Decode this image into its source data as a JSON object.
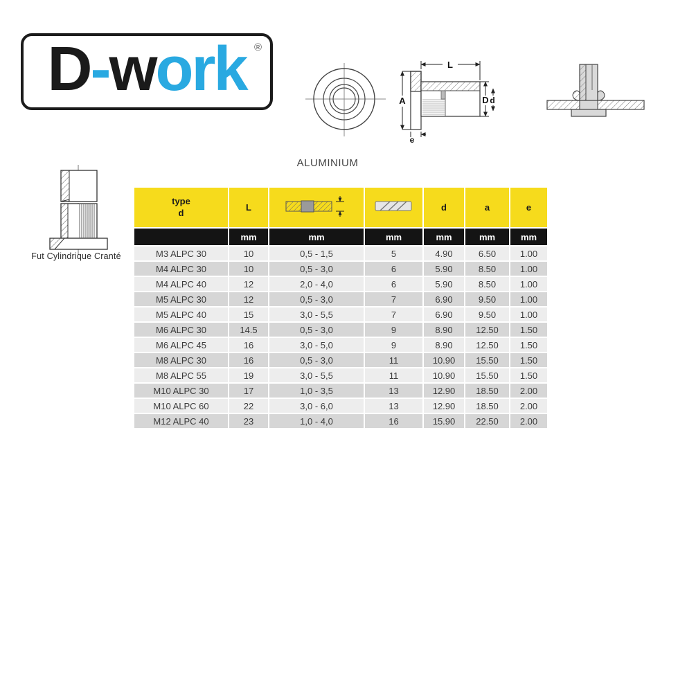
{
  "title": "ALUMINIUM",
  "logo": {
    "parts": [
      {
        "text": "D",
        "color": "black"
      },
      {
        "text": "-",
        "color": "blue"
      },
      {
        "text": "w",
        "color": "black"
      },
      {
        "text": "ork",
        "color": "blue"
      }
    ],
    "registered": "®",
    "colors": {
      "blue": "#29A9E1",
      "black": "#1A1A1A"
    }
  },
  "left_figure": {
    "caption": "Fut Cylindrique Cranté"
  },
  "side_view": {
    "labels": {
      "L": "L",
      "A": "A",
      "D": "D",
      "d": "d",
      "e": "e"
    }
  },
  "table": {
    "columns": [
      {
        "label_line1": "type",
        "label_line2": "d",
        "unit": ""
      },
      {
        "label": "L",
        "unit": "mm"
      },
      {
        "icon": "grip-range-icon",
        "unit": "mm"
      },
      {
        "icon": "drill-diameter-icon",
        "unit": "mm"
      },
      {
        "label": "d",
        "unit": "mm"
      },
      {
        "label": "a",
        "unit": "mm"
      },
      {
        "label": "e",
        "unit": "mm"
      }
    ],
    "rows": [
      [
        "M3 ALPC 30",
        "10",
        "0,5 - 1,5",
        "5",
        "4.90",
        "6.50",
        "1.00"
      ],
      [
        "M4 ALPC 30",
        "10",
        "0,5 - 3,0",
        "6",
        "5.90",
        "8.50",
        "1.00"
      ],
      [
        "M4 ALPC 40",
        "12",
        "2,0 - 4,0",
        "6",
        "5.90",
        "8.50",
        "1.00"
      ],
      [
        "M5 ALPC 30",
        "12",
        "0,5 - 3,0",
        "7",
        "6.90",
        "9.50",
        "1.00"
      ],
      [
        "M5 ALPC 40",
        "15",
        "3,0 - 5,5",
        "7",
        "6.90",
        "9.50",
        "1.00"
      ],
      [
        "M6 ALPC 30",
        "14.5",
        "0,5 - 3,0",
        "9",
        "8.90",
        "12.50",
        "1.50"
      ],
      [
        "M6 ALPC 45",
        "16",
        "3,0 - 5,0",
        "9",
        "8.90",
        "12.50",
        "1.50"
      ],
      [
        "M8 ALPC 30",
        "16",
        "0,5 - 3,0",
        "11",
        "10.90",
        "15.50",
        "1.50"
      ],
      [
        "M8 ALPC 55",
        "19",
        "3,0 - 5,5",
        "11",
        "10.90",
        "15.50",
        "1.50"
      ],
      [
        "M10 ALPC 30",
        "17",
        "1,0 - 3,5",
        "13",
        "12.90",
        "18.50",
        "2.00"
      ],
      [
        "M10 ALPC 60",
        "22",
        "3,0 - 6,0",
        "13",
        "12.90",
        "18.50",
        "2.00"
      ],
      [
        "M12 ALPC 40",
        "23",
        "1,0 - 4,0",
        "16",
        "15.90",
        "22.50",
        "2.00"
      ]
    ],
    "colors": {
      "header_bg": "#F6DB1C",
      "units_bg": "#141414",
      "row_light": "#EDEDED",
      "row_dark": "#D6D6D6"
    }
  }
}
